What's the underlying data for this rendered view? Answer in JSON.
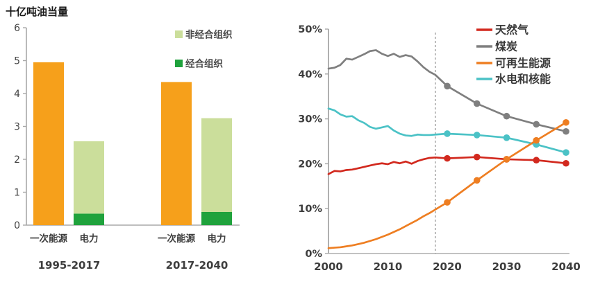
{
  "page": {
    "background": "#ffffff"
  },
  "chart_data": [
    {
      "id": "energy-demand-bars",
      "type": "bar",
      "title": "十亿吨油当量",
      "ylim": [
        0,
        6
      ],
      "yticks": [
        0,
        1,
        2,
        3,
        4,
        5,
        6
      ],
      "groups": [
        {
          "label": "1995-2017",
          "bars": [
            {
              "label": "一次能源",
              "segments": [
                {
                  "id": "primary-energy",
                  "name": "一次能源",
                  "value": 4.95,
                  "color": "#F6A01B"
                }
              ]
            },
            {
              "label": "电力",
              "segments": [
                {
                  "id": "oecd",
                  "name": "经合组织",
                  "value": 0.35,
                  "color": "#1FA23C"
                },
                {
                  "id": "non-oecd",
                  "name": "非经合组织",
                  "value": 2.2,
                  "color": "#CBDE9B"
                }
              ]
            }
          ]
        },
        {
          "label": "2017-2040",
          "bars": [
            {
              "label": "一次能源",
              "segments": [
                {
                  "id": "primary-energy",
                  "name": "一次能源",
                  "value": 4.35,
                  "color": "#F6A01B"
                }
              ]
            },
            {
              "label": "电力",
              "segments": [
                {
                  "id": "oecd",
                  "name": "经合组织",
                  "value": 0.4,
                  "color": "#1FA23C"
                },
                {
                  "id": "non-oecd",
                  "name": "非经合组织",
                  "value": 2.85,
                  "color": "#CBDE9B"
                }
              ]
            }
          ]
        }
      ],
      "legend": [
        {
          "id": "non-oecd",
          "label": "非经合组织",
          "color": "#CBDE9B"
        },
        {
          "id": "oecd",
          "label": "经合组织",
          "color": "#1FA23C"
        }
      ],
      "axis_color": "#A8A8A8",
      "text_color": "#3D3D3D"
    },
    {
      "id": "fuel-share-lines",
      "type": "line",
      "title": "",
      "xlim": [
        2000,
        2040
      ],
      "ylim": [
        0,
        50
      ],
      "yticks": [
        {
          "value": 0,
          "label": "0%"
        },
        {
          "value": 10,
          "label": "10%"
        },
        {
          "value": 20,
          "label": "20%"
        },
        {
          "value": 30,
          "label": "30%"
        },
        {
          "value": 40,
          "label": "40%"
        },
        {
          "value": 50,
          "label": "50%"
        }
      ],
      "xticks": [
        "2000",
        "2010",
        "2020",
        "2030",
        "2040"
      ],
      "dashed_line_x": 2018,
      "legend_position": "top-right",
      "series": [
        {
          "id": "coal",
          "name": "煤炭",
          "color": "#7F7F7F",
          "points": [
            [
              2000,
              41.2
            ],
            [
              2001,
              41.4
            ],
            [
              2002,
              42.0
            ],
            [
              2003,
              43.4
            ],
            [
              2004,
              43.2
            ],
            [
              2005,
              43.8
            ],
            [
              2006,
              44.4
            ],
            [
              2007,
              45.1
            ],
            [
              2008,
              45.3
            ],
            [
              2009,
              44.5
            ],
            [
              2010,
              44.0
            ],
            [
              2011,
              44.5
            ],
            [
              2012,
              43.8
            ],
            [
              2013,
              44.2
            ],
            [
              2014,
              43.9
            ],
            [
              2015,
              42.8
            ],
            [
              2016,
              41.5
            ],
            [
              2017,
              40.5
            ],
            [
              2018,
              39.8
            ],
            [
              2020,
              37.3
            ],
            [
              2025,
              33.4
            ],
            [
              2030,
              30.6
            ],
            [
              2035,
              28.8
            ],
            [
              2040,
              27.2
            ]
          ],
          "markers": [
            [
              2020,
              37.3
            ],
            [
              2025,
              33.4
            ],
            [
              2030,
              30.6
            ],
            [
              2035,
              28.8
            ],
            [
              2040,
              27.2
            ]
          ]
        },
        {
          "id": "hydro-nuclear",
          "name": "水电和核能",
          "color": "#4BC2C6",
          "points": [
            [
              2000,
              32.3
            ],
            [
              2001,
              31.9
            ],
            [
              2002,
              31.0
            ],
            [
              2003,
              30.5
            ],
            [
              2004,
              30.6
            ],
            [
              2005,
              29.7
            ],
            [
              2006,
              29.1
            ],
            [
              2007,
              28.2
            ],
            [
              2008,
              27.8
            ],
            [
              2009,
              28.1
            ],
            [
              2010,
              28.4
            ],
            [
              2011,
              27.4
            ],
            [
              2012,
              26.7
            ],
            [
              2013,
              26.3
            ],
            [
              2014,
              26.2
            ],
            [
              2015,
              26.5
            ],
            [
              2016,
              26.4
            ],
            [
              2017,
              26.4
            ],
            [
              2018,
              26.5
            ],
            [
              2020,
              26.7
            ],
            [
              2025,
              26.4
            ],
            [
              2030,
              25.8
            ],
            [
              2035,
              24.3
            ],
            [
              2040,
              22.5
            ]
          ],
          "markers": [
            [
              2020,
              26.7
            ],
            [
              2025,
              26.4
            ],
            [
              2030,
              25.8
            ],
            [
              2035,
              24.3
            ],
            [
              2040,
              22.5
            ]
          ]
        },
        {
          "id": "natural-gas",
          "name": "天然气",
          "color": "#D2291E",
          "points": [
            [
              2000,
              17.7
            ],
            [
              2001,
              18.4
            ],
            [
              2002,
              18.3
            ],
            [
              2003,
              18.6
            ],
            [
              2004,
              18.7
            ],
            [
              2005,
              19.0
            ],
            [
              2006,
              19.3
            ],
            [
              2007,
              19.6
            ],
            [
              2008,
              19.9
            ],
            [
              2009,
              20.1
            ],
            [
              2010,
              19.9
            ],
            [
              2011,
              20.4
            ],
            [
              2012,
              20.1
            ],
            [
              2013,
              20.5
            ],
            [
              2014,
              20.0
            ],
            [
              2015,
              20.6
            ],
            [
              2016,
              21.0
            ],
            [
              2017,
              21.3
            ],
            [
              2018,
              21.4
            ],
            [
              2020,
              21.2
            ],
            [
              2025,
              21.5
            ],
            [
              2030,
              21.0
            ],
            [
              2035,
              20.8
            ],
            [
              2040,
              20.1
            ]
          ],
          "markers": [
            [
              2020,
              21.2
            ],
            [
              2025,
              21.5
            ],
            [
              2030,
              21.0
            ],
            [
              2035,
              20.8
            ],
            [
              2040,
              20.1
            ]
          ]
        },
        {
          "id": "renewables",
          "name": "可再生能源",
          "color": "#EE7E22",
          "points": [
            [
              2000,
              1.2
            ],
            [
              2001,
              1.3
            ],
            [
              2002,
              1.4
            ],
            [
              2003,
              1.6
            ],
            [
              2004,
              1.8
            ],
            [
              2005,
              2.1
            ],
            [
              2006,
              2.4
            ],
            [
              2007,
              2.8
            ],
            [
              2008,
              3.2
            ],
            [
              2009,
              3.7
            ],
            [
              2010,
              4.2
            ],
            [
              2011,
              4.8
            ],
            [
              2012,
              5.4
            ],
            [
              2013,
              6.1
            ],
            [
              2014,
              6.8
            ],
            [
              2015,
              7.5
            ],
            [
              2016,
              8.3
            ],
            [
              2017,
              9.0
            ],
            [
              2018,
              9.8
            ],
            [
              2020,
              11.4
            ],
            [
              2025,
              16.3
            ],
            [
              2030,
              21.0
            ],
            [
              2035,
              25.2
            ],
            [
              2040,
              29.2
            ]
          ],
          "markers": [
            [
              2020,
              11.4
            ],
            [
              2025,
              16.3
            ],
            [
              2030,
              21.0
            ],
            [
              2035,
              25.2
            ],
            [
              2040,
              29.2
            ]
          ]
        }
      ],
      "legend": [
        {
          "id": "natural-gas",
          "label": "天然气",
          "color": "#D2291E"
        },
        {
          "id": "coal",
          "label": "煤炭",
          "color": "#7F7F7F"
        },
        {
          "id": "renewables",
          "label": "可再生能源",
          "color": "#EE7E22"
        },
        {
          "id": "hydro-nuclear",
          "label": "水电和核能",
          "color": "#4BC2C6"
        }
      ],
      "axis_color": "#A8A8A8",
      "dashed_line_color": "#909090",
      "text_color": "#3D3D3D"
    }
  ]
}
